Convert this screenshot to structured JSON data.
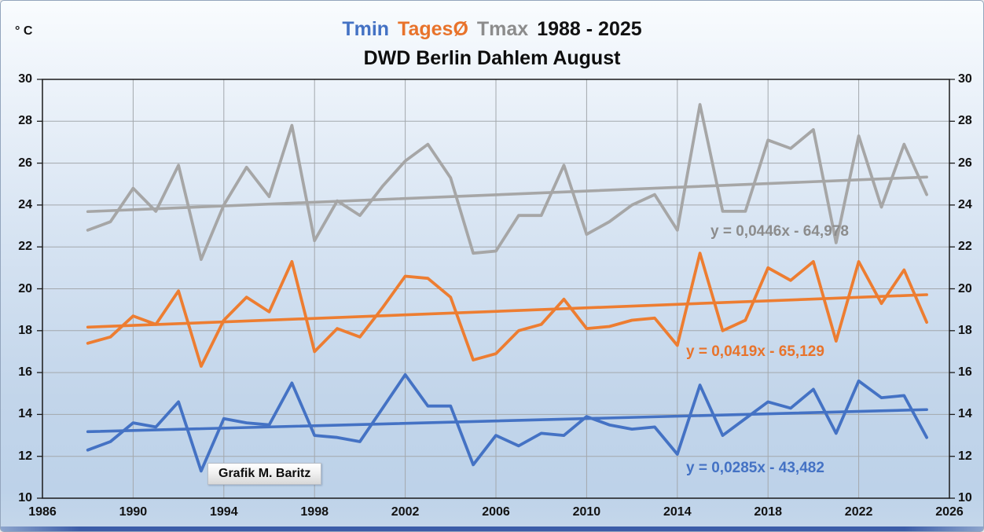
{
  "header": {
    "unit_label": "° C",
    "title_range": "1988 - 2025",
    "subtitle": "DWD Berlin Dahlem August"
  },
  "watermark": "Grafik M. Baritz",
  "colors": {
    "background_top": "#f9fcfe",
    "background_bottom": "#bdd2e9",
    "gridline": "#a3a8ad",
    "frame": "#1a1a1a",
    "tick": "#1a1a1a",
    "bottom_bar": "#3b5ca8"
  },
  "chart_data": {
    "type": "line",
    "title": "Tmin TagesØ Tmax 1988 - 2025",
    "subtitle": "DWD Berlin Dahlem August",
    "xlabel": "",
    "ylabel": "° C",
    "xlim": [
      1986,
      2026
    ],
    "ylim": [
      10,
      30
    ],
    "x_ticks": [
      1986,
      1990,
      1994,
      1998,
      2002,
      2006,
      2010,
      2014,
      2018,
      2022,
      2026
    ],
    "y_ticks": [
      10,
      12,
      14,
      16,
      18,
      20,
      22,
      24,
      26,
      28,
      30
    ],
    "grid": true,
    "legend_position": "title-inline",
    "trend_span_years": [
      1988,
      2025
    ],
    "x": [
      1988,
      1989,
      1990,
      1991,
      1992,
      1993,
      1994,
      1995,
      1996,
      1997,
      1998,
      1999,
      2000,
      2001,
      2002,
      2003,
      2004,
      2005,
      2006,
      2007,
      2008,
      2009,
      2010,
      2011,
      2012,
      2013,
      2014,
      2015,
      2016,
      2017,
      2018,
      2019,
      2020,
      2021,
      2022,
      2023,
      2024,
      2025
    ],
    "series": [
      {
        "name": "Tmin",
        "color": "#4472C4",
        "text_color": "#4472C4",
        "values": [
          12.3,
          12.7,
          13.6,
          13.4,
          14.6,
          11.3,
          13.8,
          13.6,
          13.5,
          15.5,
          13.0,
          12.9,
          12.7,
          14.3,
          15.9,
          14.4,
          14.4,
          11.6,
          13.0,
          12.5,
          13.1,
          13.0,
          13.9,
          13.5,
          13.3,
          13.4,
          12.1,
          15.4,
          13.0,
          13.8,
          14.6,
          14.3,
          15.2,
          13.1,
          15.6,
          14.8,
          14.9,
          12.9
        ],
        "trend": {
          "slope": 0.0285,
          "intercept": -43.482,
          "label": "y = 0,0285x - 43,482"
        }
      },
      {
        "name": "TagesØ",
        "color": "#ED7D31",
        "text_color": "#E8732B",
        "values": [
          17.4,
          17.7,
          18.7,
          18.3,
          19.9,
          16.3,
          18.5,
          19.6,
          18.9,
          21.3,
          17.0,
          18.1,
          17.7,
          19.1,
          20.6,
          20.5,
          19.6,
          16.6,
          16.9,
          18.0,
          18.3,
          19.5,
          18.1,
          18.2,
          18.5,
          18.6,
          17.3,
          21.7,
          18.0,
          18.5,
          21.0,
          20.4,
          21.3,
          17.5,
          21.3,
          19.3,
          20.9,
          18.4
        ],
        "trend": {
          "slope": 0.0419,
          "intercept": -65.129,
          "label": "y = 0,0419x - 65,129"
        }
      },
      {
        "name": "Tmax",
        "color": "#A6A6A6",
        "text_color": "#8C8C8C",
        "values": [
          22.8,
          23.2,
          24.8,
          23.7,
          25.9,
          21.4,
          24.0,
          25.8,
          24.4,
          27.8,
          22.3,
          24.2,
          23.5,
          24.9,
          26.1,
          26.9,
          25.3,
          21.7,
          21.8,
          23.5,
          23.5,
          25.9,
          22.6,
          23.2,
          24.0,
          24.5,
          22.8,
          28.8,
          23.7,
          23.7,
          27.1,
          26.7,
          27.6,
          22.2,
          27.3,
          23.9,
          26.9,
          24.5
        ],
        "trend": {
          "slope": 0.0446,
          "intercept": -64.978,
          "label": "y = 0,0446x - 64,978"
        }
      }
    ]
  }
}
